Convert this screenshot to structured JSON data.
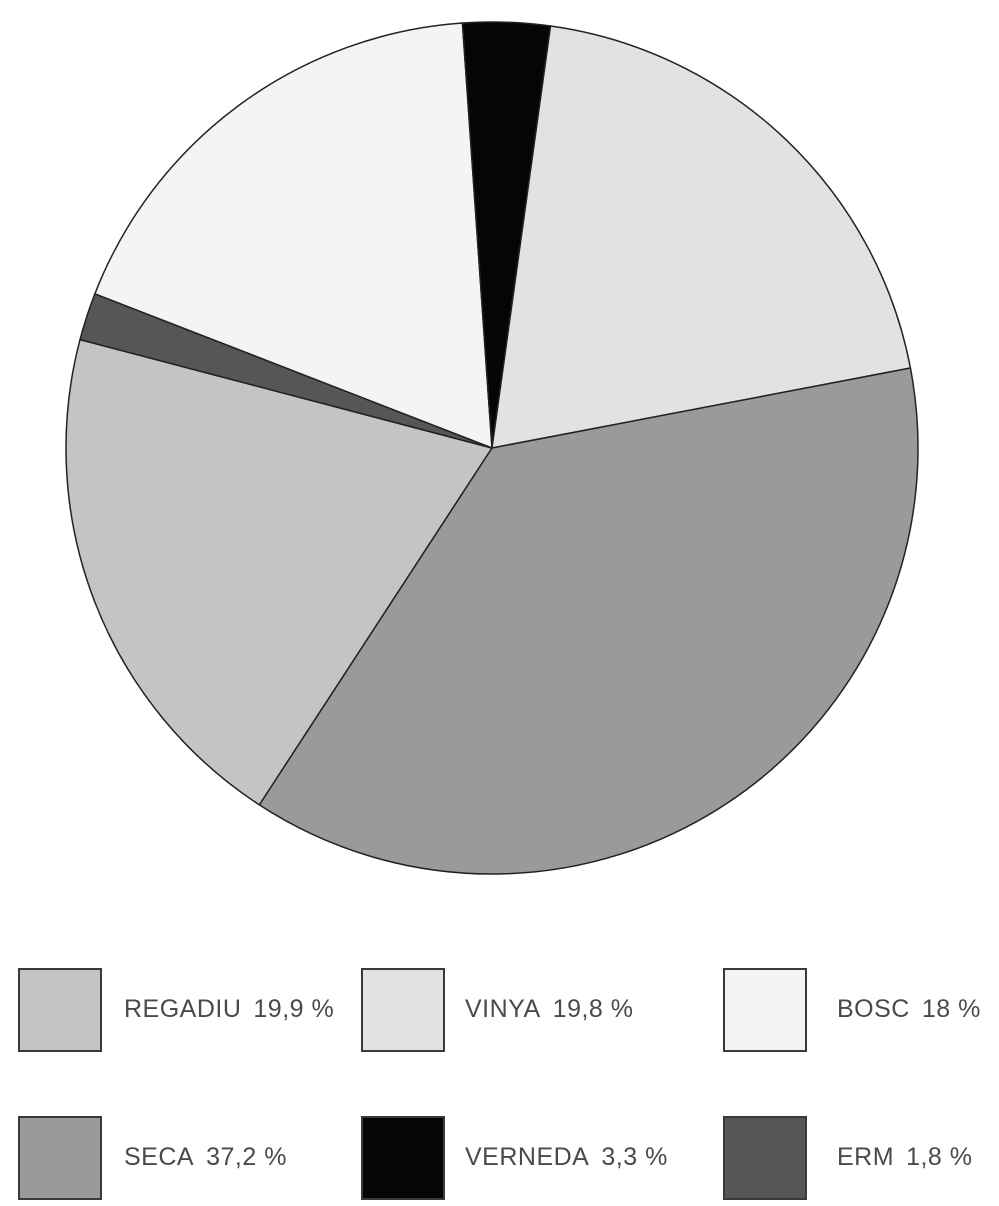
{
  "chart_data": {
    "type": "pie",
    "title": "",
    "slices": [
      {
        "label": "REGADIU",
        "value": 19.9,
        "value_label": "19,9 %",
        "color": "#c4c4c4"
      },
      {
        "label": "ERM",
        "value": 1.8,
        "value_label": "1,8 %",
        "color": "#565656"
      },
      {
        "label": "BOSC",
        "value": 18,
        "value_label": "18 %",
        "color": "#f4f4f4"
      },
      {
        "label": "VERNEDA",
        "value": 3.3,
        "value_label": "3,3 %",
        "color": "#050505"
      },
      {
        "label": "VINYA",
        "value": 19.8,
        "value_label": "19,8 %",
        "color": "#e2e2e2"
      },
      {
        "label": "SECA",
        "value": 37.2,
        "value_label": "37,2 %",
        "color": "#9a9a9a"
      }
    ],
    "legend": [
      {
        "label": "REGADIU",
        "value_label": "19,9 %",
        "color": "#c4c4c4"
      },
      {
        "label": "VINYA",
        "value_label": "19,8 %",
        "color": "#e2e2e2"
      },
      {
        "label": "BOSC",
        "value_label": "18 %",
        "color": "#f4f4f4"
      },
      {
        "label": "SECA",
        "value_label": "37,2 %",
        "color": "#9a9a9a"
      },
      {
        "label": "VERNEDA",
        "value_label": "3,3 %",
        "color": "#050505"
      },
      {
        "label": "ERM",
        "value_label": "1,8 %",
        "color": "#565656"
      }
    ],
    "legend_position": "bottom"
  }
}
